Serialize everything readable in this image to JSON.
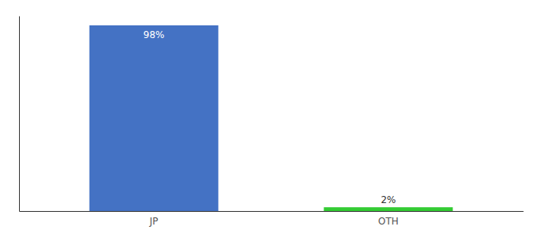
{
  "chart_data": {
    "type": "bar",
    "categories": [
      "JP",
      "OTH"
    ],
    "values": [
      98,
      2
    ],
    "value_labels": [
      "98%",
      "2%"
    ],
    "colors": [
      "#4472c4",
      "#33cc33"
    ],
    "ylim": [
      0,
      103
    ],
    "data_labels": true,
    "tick_labels": "x"
  }
}
